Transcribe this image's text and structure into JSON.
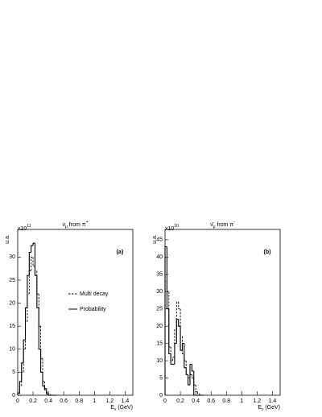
{
  "chart_data": [
    {
      "type": "histogram",
      "title": [
        "ν",
        "μ",
        " from  π",
        "+"
      ],
      "ylabel": "u.a.",
      "multiplier": [
        "x10",
        "11"
      ],
      "xlabel": [
        "E",
        "ν",
        " (GeV)"
      ],
      "panel_label": "(a)",
      "bins": [
        0,
        0.025,
        0.05,
        0.075,
        0.1,
        0.125,
        0.15,
        0.175,
        0.2,
        0.225,
        0.25,
        0.275,
        0.3,
        0.325,
        0.35,
        0.375,
        0.4,
        0.425,
        0.45,
        0.475,
        0.5
      ],
      "series": [
        {
          "name": "Multi decay",
          "color": "#000000",
          "dash": true,
          "values": [
            0.3,
            2,
            5,
            10,
            16,
            22,
            27,
            30,
            28,
            27,
            22,
            15,
            8,
            3,
            1.5,
            0.6,
            0.2,
            0,
            0,
            0
          ]
        },
        {
          "name": "Probability",
          "color": "#000000",
          "dash": false,
          "values": [
            0.5,
            3,
            7,
            12,
            19,
            26,
            31,
            32.5,
            33,
            26,
            19,
            10,
            5,
            2,
            1.2,
            0.3,
            0,
            0,
            0,
            0
          ]
        }
      ],
      "xlim": [
        0,
        1.5
      ],
      "xticks": [
        0,
        0.2,
        0.4,
        0.6,
        0.8,
        1,
        1.2,
        1.4
      ],
      "ylim": [
        0,
        36
      ],
      "yticks": [
        0,
        5,
        10,
        15,
        20,
        25,
        30
      ],
      "legend": true
    },
    {
      "type": "histogram",
      "title": [
        "ν̄",
        "μ",
        " from  π",
        "-"
      ],
      "ylabel": "u.a.",
      "multiplier": [
        "x10",
        "10"
      ],
      "xlabel": [
        "E",
        "ν",
        " (GeV)"
      ],
      "panel_label": "(b)",
      "bins": [
        0,
        0.025,
        0.05,
        0.075,
        0.1,
        0.125,
        0.15,
        0.175,
        0.2,
        0.225,
        0.25,
        0.275,
        0.3,
        0.325,
        0.35,
        0.375,
        0.4,
        0.425,
        0.45,
        0.475,
        0.5
      ],
      "series": [
        {
          "color": "#000000",
          "dash": true,
          "values": [
            33,
            30,
            14,
            10,
            11,
            19,
            27,
            25,
            17,
            12,
            10,
            6,
            5,
            6,
            5,
            3,
            1,
            0.5,
            0,
            0
          ]
        },
        {
          "color": "#000000",
          "dash": false,
          "values": [
            43,
            25,
            12,
            9,
            9,
            15,
            22,
            20,
            13,
            15,
            8,
            6,
            3,
            9,
            7,
            0,
            0,
            0,
            0,
            0
          ]
        }
      ],
      "xlim": [
        0,
        1.5
      ],
      "xticks": [
        0,
        0.2,
        0.4,
        0.6,
        0.8,
        1,
        1.2,
        1.4
      ],
      "ylim": [
        0,
        48
      ],
      "yticks": [
        0,
        5,
        10,
        15,
        20,
        25,
        30,
        35,
        40,
        45
      ],
      "legend": false
    }
  ]
}
